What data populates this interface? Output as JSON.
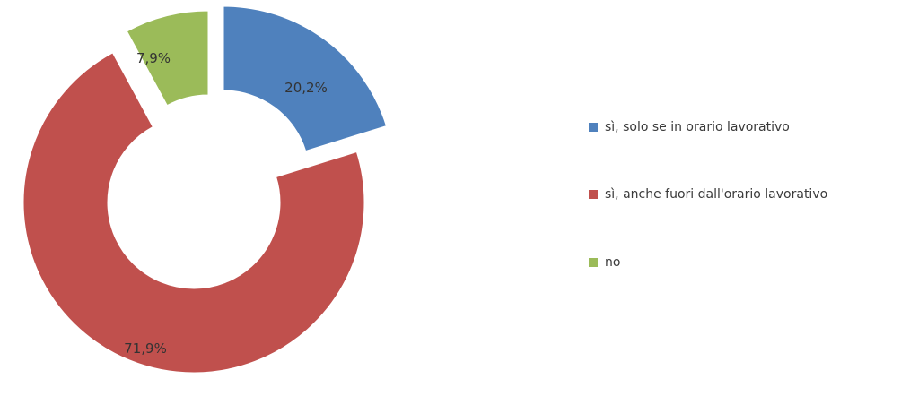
{
  "chart_data": {
    "type": "pie",
    "variant": "exploded-doughnut",
    "title": "",
    "legend_position": "right",
    "series": [
      {
        "name": "sì, solo se in orario lavorativo",
        "value": 20.2,
        "label": "20,2%",
        "color": "#4F81BD"
      },
      {
        "name": "sì, anche fuori dall'orario lavorativo",
        "value": 71.9,
        "label": "71,9%",
        "color": "#C0504D"
      },
      {
        "name": "no",
        "value": 7.9,
        "label": "7,9%",
        "color": "#9BBB59"
      }
    ]
  }
}
